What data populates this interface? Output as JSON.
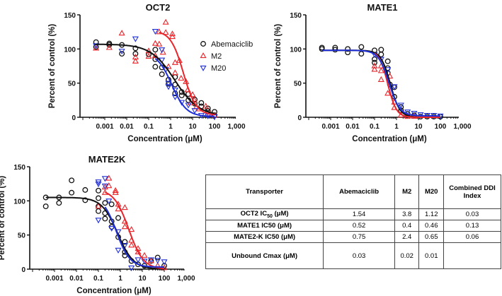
{
  "colors": {
    "Abemaciclib": "#111111",
    "M2": "#e8262b",
    "M20": "#1f2fd6"
  },
  "chart_data": [
    {
      "type": "scatter",
      "title": "OCT2",
      "xlabel": "Concentration (μM)",
      "ylabel": "Percent of control (%)",
      "xscale": "log",
      "xticks": [
        "0.001",
        "0.01",
        "0.1",
        "1",
        "10",
        "100",
        "1,000"
      ],
      "yticks": [
        "0",
        "50",
        "100",
        "150"
      ],
      "ylim": [
        0,
        150
      ],
      "legend": {
        "placement": "top-right",
        "entries": [
          "Abemaciclib",
          "M2",
          "M20"
        ]
      },
      "series": [
        {
          "name": "Abemaciclib",
          "marker": "circle",
          "fit": {
            "top": 107,
            "bottom": 2,
            "ic50": 1.54,
            "hill": 0.8,
            "from": 0.0004,
            "to": 100
          },
          "points": [
            [
              0.0004,
              110
            ],
            [
              0.0004,
              103
            ],
            [
              0.0016,
              108
            ],
            [
              0.0016,
              106
            ],
            [
              0.006,
              106
            ],
            [
              0.006,
              93
            ],
            [
              0.025,
              101
            ],
            [
              0.025,
              93
            ],
            [
              0.1,
              92
            ],
            [
              0.2,
              99
            ],
            [
              0.2,
              85
            ],
            [
              0.2,
              74
            ],
            [
              0.4,
              73
            ],
            [
              0.4,
              63
            ],
            [
              0.8,
              55
            ],
            [
              0.8,
              49
            ],
            [
              1.6,
              59
            ],
            [
              1.6,
              48
            ],
            [
              1.6,
              35
            ],
            [
              3.2,
              37
            ],
            [
              3.2,
              32
            ],
            [
              6.4,
              34
            ],
            [
              6.4,
              25
            ],
            [
              12.5,
              26
            ],
            [
              12.5,
              20
            ],
            [
              25,
              21
            ],
            [
              25,
              16
            ],
            [
              50,
              13
            ],
            [
              50,
              9
            ],
            [
              100,
              8
            ],
            [
              100,
              3
            ]
          ]
        },
        {
          "name": "M2",
          "marker": "triangle-up",
          "fit": {
            "top": 127,
            "bottom": 3,
            "ic50": 3.8,
            "hill": 1.5,
            "from": 0.3,
            "to": 100
          },
          "points": [
            [
              0.0004,
              101
            ],
            [
              0.0016,
              102
            ],
            [
              0.006,
              123
            ],
            [
              0.025,
              88
            ],
            [
              0.025,
              82
            ],
            [
              0.1,
              97
            ],
            [
              0.1,
              89
            ],
            [
              0.2,
              108
            ],
            [
              0.2,
              90
            ],
            [
              0.3,
              107
            ],
            [
              0.3,
              125
            ],
            [
              0.6,
              139
            ],
            [
              0.6,
              124
            ],
            [
              0.45,
              95
            ],
            [
              0.8,
              74
            ],
            [
              1.2,
              122
            ],
            [
              1.2,
              118
            ],
            [
              1.6,
              80
            ],
            [
              1.6,
              65
            ],
            [
              2.5,
              83
            ],
            [
              3,
              57
            ],
            [
              5,
              52
            ],
            [
              6,
              40
            ],
            [
              8,
              21
            ],
            [
              10,
              33
            ],
            [
              12,
              25
            ],
            [
              15,
              15
            ],
            [
              20,
              12
            ],
            [
              40,
              16
            ],
            [
              60,
              5
            ],
            [
              100,
              3
            ]
          ]
        },
        {
          "name": "M20",
          "marker": "triangle-down",
          "fit": {
            "top": 95,
            "bottom": 1,
            "ic50": 1.12,
            "hill": 1.3,
            "from": 0.2,
            "to": 100
          },
          "points": [
            [
              0.0004,
              105
            ],
            [
              0.006,
              97
            ],
            [
              0.025,
              115
            ],
            [
              0.2,
              126
            ],
            [
              0.4,
              99
            ],
            [
              0.4,
              84
            ],
            [
              0.6,
              70
            ],
            [
              0.8,
              50
            ],
            [
              0.8,
              45
            ],
            [
              1.6,
              40
            ],
            [
              1.6,
              30
            ],
            [
              3.2,
              22
            ],
            [
              6.4,
              18
            ],
            [
              12.5,
              10
            ],
            [
              25,
              3
            ],
            [
              50,
              2
            ],
            [
              100,
              1
            ]
          ]
        }
      ]
    },
    {
      "type": "scatter",
      "title": "MATE1",
      "xlabel": "Concentration (μM)",
      "ylabel": "Percent of control (%)",
      "xscale": "log",
      "xticks": [
        "0.001",
        "0.01",
        "0.1",
        "1",
        "10",
        "100",
        "1,000"
      ],
      "yticks": [
        "0",
        "50",
        "100",
        "150"
      ],
      "ylim": [
        0,
        150
      ],
      "series": [
        {
          "name": "Abemaciclib",
          "marker": "circle",
          "fit": {
            "top": 98,
            "bottom": 0,
            "ic50": 0.52,
            "hill": 2,
            "from": 0.0004,
            "to": 100
          },
          "points": [
            [
              0.0004,
              102
            ],
            [
              0.0004,
              100
            ],
            [
              0.0016,
              102
            ],
            [
              0.0016,
              99
            ],
            [
              0.006,
              100
            ],
            [
              0.006,
              95
            ],
            [
              0.025,
              103
            ],
            [
              0.025,
              93
            ],
            [
              0.1,
              98
            ],
            [
              0.1,
              85
            ],
            [
              0.1,
              80
            ],
            [
              0.2,
              99
            ],
            [
              0.2,
              92
            ],
            [
              0.4,
              82
            ],
            [
              0.4,
              72
            ],
            [
              0.4,
              65
            ],
            [
              0.5,
              48
            ],
            [
              0.8,
              44
            ],
            [
              0.8,
              30
            ],
            [
              1.6,
              15
            ],
            [
              1.6,
              10
            ],
            [
              3.2,
              5
            ],
            [
              6.4,
              3
            ],
            [
              12.5,
              1
            ],
            [
              25,
              1
            ],
            [
              50,
              1
            ],
            [
              100,
              1
            ]
          ]
        },
        {
          "name": "M2",
          "marker": "triangle-up",
          "fit": {
            "top": 98,
            "bottom": 0,
            "ic50": 0.4,
            "hill": 2.2,
            "from": 0.1,
            "to": 100
          },
          "points": [
            [
              0.1,
              75
            ],
            [
              0.1,
              70
            ],
            [
              0.2,
              75
            ],
            [
              0.2,
              68
            ],
            [
              0.2,
              55
            ],
            [
              0.4,
              35
            ],
            [
              0.5,
              60
            ],
            [
              0.8,
              22
            ],
            [
              0.8,
              14
            ],
            [
              1.6,
              3
            ],
            [
              3.2,
              1
            ],
            [
              6.4,
              1
            ]
          ]
        },
        {
          "name": "M20",
          "marker": "triangle-down",
          "fit": {
            "top": 98,
            "bottom": 2,
            "ic50": 0.46,
            "hill": 1.8,
            "from": 0.0004,
            "to": 100
          },
          "points": [
            [
              0.1,
              92
            ],
            [
              0.2,
              85
            ],
            [
              0.4,
              70
            ],
            [
              0.8,
              45
            ],
            [
              1.6,
              18
            ],
            [
              3.2,
              8
            ],
            [
              6.4,
              6
            ],
            [
              12.5,
              4
            ],
            [
              25,
              3
            ],
            [
              50,
              3
            ],
            [
              100,
              2
            ]
          ]
        }
      ]
    },
    {
      "type": "scatter",
      "title": "MATE2K",
      "xlabel": "Concentration (μM)",
      "ylabel": "Percent of control (%)",
      "xscale": "log",
      "xticks": [
        "0.001",
        "0.01",
        "0.1",
        "1",
        "10",
        "100",
        "1,000"
      ],
      "yticks": [
        "0",
        "50",
        "100",
        "150"
      ],
      "ylim": [
        0,
        150
      ],
      "series": [
        {
          "name": "Abemaciclib",
          "marker": "circle",
          "fit": {
            "top": 105,
            "bottom": 0,
            "ic50": 0.75,
            "hill": 1.2,
            "from": 0.0004,
            "to": 100
          },
          "points": [
            [
              0.0004,
              105
            ],
            [
              0.0004,
              92
            ],
            [
              0.0016,
              105
            ],
            [
              0.0016,
              97
            ],
            [
              0.006,
              130
            ],
            [
              0.006,
              112
            ],
            [
              0.025,
              116
            ],
            [
              0.025,
              101
            ],
            [
              0.1,
              115
            ],
            [
              0.1,
              104
            ],
            [
              0.1,
              92
            ],
            [
              0.1,
              85
            ],
            [
              0.2,
              97
            ],
            [
              0.2,
              82
            ],
            [
              0.2,
              74
            ],
            [
              0.4,
              95
            ],
            [
              0.4,
              70
            ],
            [
              0.4,
              62
            ],
            [
              0.8,
              75
            ],
            [
              0.8,
              47
            ],
            [
              1.6,
              40
            ],
            [
              1.6,
              25
            ],
            [
              1.6,
              20
            ],
            [
              3.2,
              12
            ],
            [
              6.4,
              7
            ],
            [
              12.5,
              5
            ],
            [
              25,
              12
            ],
            [
              50,
              17
            ],
            [
              100,
              5
            ]
          ]
        },
        {
          "name": "M2",
          "marker": "triangle-up",
          "fit": {
            "top": 117,
            "bottom": 0,
            "ic50": 2.4,
            "hill": 1.3,
            "from": 0.2,
            "to": 100
          },
          "points": [
            [
              0.1,
              92
            ],
            [
              0.2,
              120
            ],
            [
              0.2,
              112
            ],
            [
              0.3,
              133
            ],
            [
              0.3,
              122
            ],
            [
              0.6,
              115
            ],
            [
              0.6,
              112
            ],
            [
              0.8,
              95
            ],
            [
              0.8,
              88
            ],
            [
              1.6,
              90
            ],
            [
              1.6,
              70
            ],
            [
              1.6,
              62
            ],
            [
              3.2,
              58
            ],
            [
              3.2,
              42
            ],
            [
              3.2,
              35
            ],
            [
              6.4,
              30
            ],
            [
              6.4,
              25
            ],
            [
              12.5,
              20
            ],
            [
              25,
              12
            ],
            [
              50,
              5
            ],
            [
              100,
              2
            ]
          ]
        },
        {
          "name": "M20",
          "marker": "triangle-down",
          "fit": {
            "top": 108,
            "bottom": 3,
            "ic50": 0.65,
            "hill": 1.4,
            "from": 0.2,
            "to": 100
          },
          "points": [
            [
              0.1,
              128
            ],
            [
              0.1,
              125
            ],
            [
              0.1,
              72
            ],
            [
              0.2,
              133
            ],
            [
              0.2,
              122
            ],
            [
              0.3,
              100
            ],
            [
              0.4,
              60
            ],
            [
              0.8,
              55
            ],
            [
              0.8,
              28
            ],
            [
              1.6,
              35
            ],
            [
              3.2,
              2
            ],
            [
              6.4,
              14
            ],
            [
              12.5,
              12
            ],
            [
              25,
              14
            ],
            [
              50,
              13
            ],
            [
              100,
              11
            ]
          ]
        }
      ]
    }
  ],
  "table": {
    "headers": [
      "Transporter",
      "Abemaciclib",
      "M2",
      "M20",
      "Combined DDI Index"
    ],
    "rows": [
      {
        "label": "OCT2 IC",
        "sub": "50",
        "unit": " (μM)",
        "cells": [
          "1.54",
          "3.8",
          "1.12",
          "0.03"
        ]
      },
      {
        "label": "MATE1  IC50 (μM)",
        "cells": [
          "0.52",
          "0.4",
          "0.46",
          "0.13"
        ]
      },
      {
        "label": "MATE2-K  IC50 (μM)",
        "cells": [
          "0.75",
          "2.4",
          "0.65",
          "0.06"
        ]
      },
      {
        "label": "Unbound Cmax (μM)",
        "cells": [
          "0.03",
          "0.02",
          "0.01",
          ""
        ]
      }
    ]
  }
}
